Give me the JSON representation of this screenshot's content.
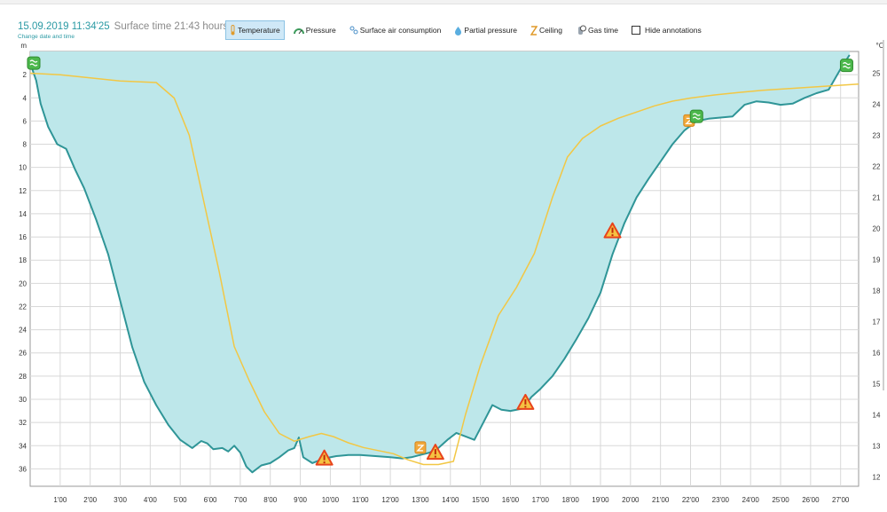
{
  "header": {
    "datetime": "15.09.2019 11:34'25",
    "surface_time": "Surface time 21:43 hours",
    "change_link": "Change date and time"
  },
  "toolbar": [
    {
      "label": "Temperature",
      "icon": "thermometer-icon",
      "active": true
    },
    {
      "label": "Pressure",
      "icon": "pressure-gauge-icon",
      "active": false
    },
    {
      "label": "Surface air consumption",
      "icon": "air-consumption-icon",
      "active": false
    },
    {
      "label": "Partial pressure",
      "icon": "partial-pressure-icon",
      "active": false
    },
    {
      "label": "Ceiling",
      "icon": "ceiling-icon",
      "active": false
    },
    {
      "label": "Gas time",
      "icon": "gas-time-icon",
      "active": false
    }
  ],
  "hide_annotations": {
    "label": "Hide annotations",
    "checked": false
  },
  "colors": {
    "depth_fill": "#bde7ea",
    "depth_line": "#2f9597",
    "temp_line": "#f2c744",
    "grid": "#d8d8d8",
    "warning": "#e8441c",
    "gas_marker": "#4cb84c",
    "ceiling_marker": "#f2a93b"
  },
  "chart_data": {
    "type": "area",
    "xlabel": "",
    "ylabel": "m",
    "y2label": "°C",
    "x_ticks": [
      "1'00",
      "2'00",
      "3'00",
      "4'00",
      "5'00",
      "6'00",
      "7'00",
      "8'00",
      "9'00",
      "10'00",
      "11'00",
      "12'00",
      "13'00",
      "14'00",
      "15'00",
      "16'00",
      "17'00",
      "18'00",
      "19'00",
      "20'00",
      "21'00",
      "22'00",
      "23'00",
      "24'00",
      "25'00",
      "26'00",
      "27'00"
    ],
    "xlim": [
      0,
      27.6
    ],
    "ylim": [
      37.5,
      0
    ],
    "y_ticks": [
      2,
      4,
      6,
      8,
      10,
      12,
      14,
      16,
      18,
      20,
      22,
      24,
      26,
      28,
      30,
      32,
      34,
      36
    ],
    "y2lim": [
      11.7,
      25.7
    ],
    "y2_ticks": [
      12,
      13,
      14,
      15,
      16,
      17,
      18,
      19,
      20,
      21,
      22,
      23,
      24,
      25
    ],
    "series": [
      {
        "name": "Depth",
        "axis": "left",
        "points": [
          [
            0,
            1.0
          ],
          [
            0.2,
            2.5
          ],
          [
            0.35,
            4.5
          ],
          [
            0.6,
            6.5
          ],
          [
            0.9,
            8.0
          ],
          [
            1.2,
            8.4
          ],
          [
            1.5,
            10.2
          ],
          [
            1.8,
            11.8
          ],
          [
            2.2,
            14.5
          ],
          [
            2.6,
            17.5
          ],
          [
            3.0,
            21.5
          ],
          [
            3.4,
            25.5
          ],
          [
            3.8,
            28.5
          ],
          [
            4.2,
            30.5
          ],
          [
            4.6,
            32.2
          ],
          [
            5.0,
            33.5
          ],
          [
            5.4,
            34.2
          ],
          [
            5.7,
            33.6
          ],
          [
            5.9,
            33.8
          ],
          [
            6.1,
            34.3
          ],
          [
            6.4,
            34.2
          ],
          [
            6.6,
            34.5
          ],
          [
            6.8,
            34.0
          ],
          [
            7.0,
            34.6
          ],
          [
            7.2,
            35.8
          ],
          [
            7.4,
            36.3
          ],
          [
            7.7,
            35.7
          ],
          [
            8.0,
            35.5
          ],
          [
            8.3,
            35.0
          ],
          [
            8.6,
            34.4
          ],
          [
            8.8,
            34.2
          ],
          [
            8.95,
            33.3
          ],
          [
            9.1,
            35.0
          ],
          [
            9.4,
            35.5
          ],
          [
            9.8,
            35.1
          ],
          [
            10.2,
            34.9
          ],
          [
            10.6,
            34.8
          ],
          [
            11.0,
            34.8
          ],
          [
            11.5,
            34.9
          ],
          [
            12.0,
            35.0
          ],
          [
            12.4,
            35.1
          ],
          [
            12.7,
            35.0
          ],
          [
            13.0,
            34.8
          ],
          [
            13.3,
            34.6
          ],
          [
            13.6,
            34.2
          ],
          [
            13.9,
            33.5
          ],
          [
            14.2,
            32.9
          ],
          [
            14.5,
            33.2
          ],
          [
            14.8,
            33.5
          ],
          [
            15.1,
            32.0
          ],
          [
            15.4,
            30.5
          ],
          [
            15.7,
            30.9
          ],
          [
            16.0,
            31.0
          ],
          [
            16.4,
            30.8
          ],
          [
            16.7,
            29.8
          ],
          [
            17.0,
            29.1
          ],
          [
            17.4,
            28.0
          ],
          [
            17.8,
            26.5
          ],
          [
            18.2,
            24.8
          ],
          [
            18.6,
            23.0
          ],
          [
            19.0,
            20.8
          ],
          [
            19.4,
            17.5
          ],
          [
            19.8,
            14.8
          ],
          [
            20.2,
            12.6
          ],
          [
            20.6,
            11.0
          ],
          [
            21.0,
            9.5
          ],
          [
            21.4,
            8.0
          ],
          [
            21.8,
            6.8
          ],
          [
            22.2,
            6.0
          ],
          [
            22.6,
            5.8
          ],
          [
            23.0,
            5.7
          ],
          [
            23.4,
            5.6
          ],
          [
            23.8,
            4.6
          ],
          [
            24.2,
            4.3
          ],
          [
            24.6,
            4.4
          ],
          [
            25.0,
            4.6
          ],
          [
            25.4,
            4.5
          ],
          [
            25.8,
            4.0
          ],
          [
            26.2,
            3.6
          ],
          [
            26.6,
            3.3
          ],
          [
            27.0,
            1.5
          ],
          [
            27.3,
            0.3
          ]
        ]
      },
      {
        "name": "Temperature",
        "axis": "right",
        "points": [
          [
            0,
            25.0
          ],
          [
            1.0,
            24.95
          ],
          [
            2.0,
            24.85
          ],
          [
            3.0,
            24.75
          ],
          [
            4.2,
            24.7
          ],
          [
            4.8,
            24.2
          ],
          [
            5.3,
            23.0
          ],
          [
            5.8,
            20.8
          ],
          [
            6.3,
            18.6
          ],
          [
            6.8,
            16.2
          ],
          [
            7.3,
            15.1
          ],
          [
            7.8,
            14.1
          ],
          [
            8.3,
            13.4
          ],
          [
            8.8,
            13.15
          ],
          [
            9.3,
            13.3
          ],
          [
            9.7,
            13.4
          ],
          [
            10.1,
            13.3
          ],
          [
            10.6,
            13.1
          ],
          [
            11.1,
            12.95
          ],
          [
            11.6,
            12.85
          ],
          [
            12.1,
            12.75
          ],
          [
            12.6,
            12.55
          ],
          [
            13.1,
            12.4
          ],
          [
            13.6,
            12.4
          ],
          [
            14.1,
            12.5
          ],
          [
            14.5,
            14.0
          ],
          [
            15.0,
            15.6
          ],
          [
            15.6,
            17.2
          ],
          [
            16.2,
            18.1
          ],
          [
            16.8,
            19.2
          ],
          [
            17.4,
            21.0
          ],
          [
            17.9,
            22.3
          ],
          [
            18.4,
            22.9
          ],
          [
            19.0,
            23.3
          ],
          [
            19.6,
            23.55
          ],
          [
            20.2,
            23.75
          ],
          [
            20.8,
            23.95
          ],
          [
            21.4,
            24.1
          ],
          [
            22.0,
            24.2
          ],
          [
            22.8,
            24.3
          ],
          [
            23.6,
            24.38
          ],
          [
            24.4,
            24.45
          ],
          [
            25.2,
            24.5
          ],
          [
            26.0,
            24.55
          ],
          [
            26.8,
            24.6
          ],
          [
            27.6,
            24.65
          ]
        ]
      }
    ],
    "annotations": [
      {
        "type": "warning",
        "x": 9.8,
        "y": 35.1
      },
      {
        "type": "warning",
        "x": 13.5,
        "y": 34.6
      },
      {
        "type": "warning",
        "x": 16.5,
        "y": 30.3
      },
      {
        "type": "warning",
        "x": 19.4,
        "y": 15.5
      },
      {
        "type": "ceiling",
        "x": 13.0,
        "y": 34.2
      },
      {
        "type": "ceiling",
        "x": 21.95,
        "y": 6.0
      },
      {
        "type": "gas",
        "x": 22.2,
        "y": 5.6
      },
      {
        "type": "gas-start",
        "x": 0.0,
        "y": 1.0
      },
      {
        "type": "gas-end",
        "x": 27.2,
        "y": 1.2
      }
    ]
  }
}
